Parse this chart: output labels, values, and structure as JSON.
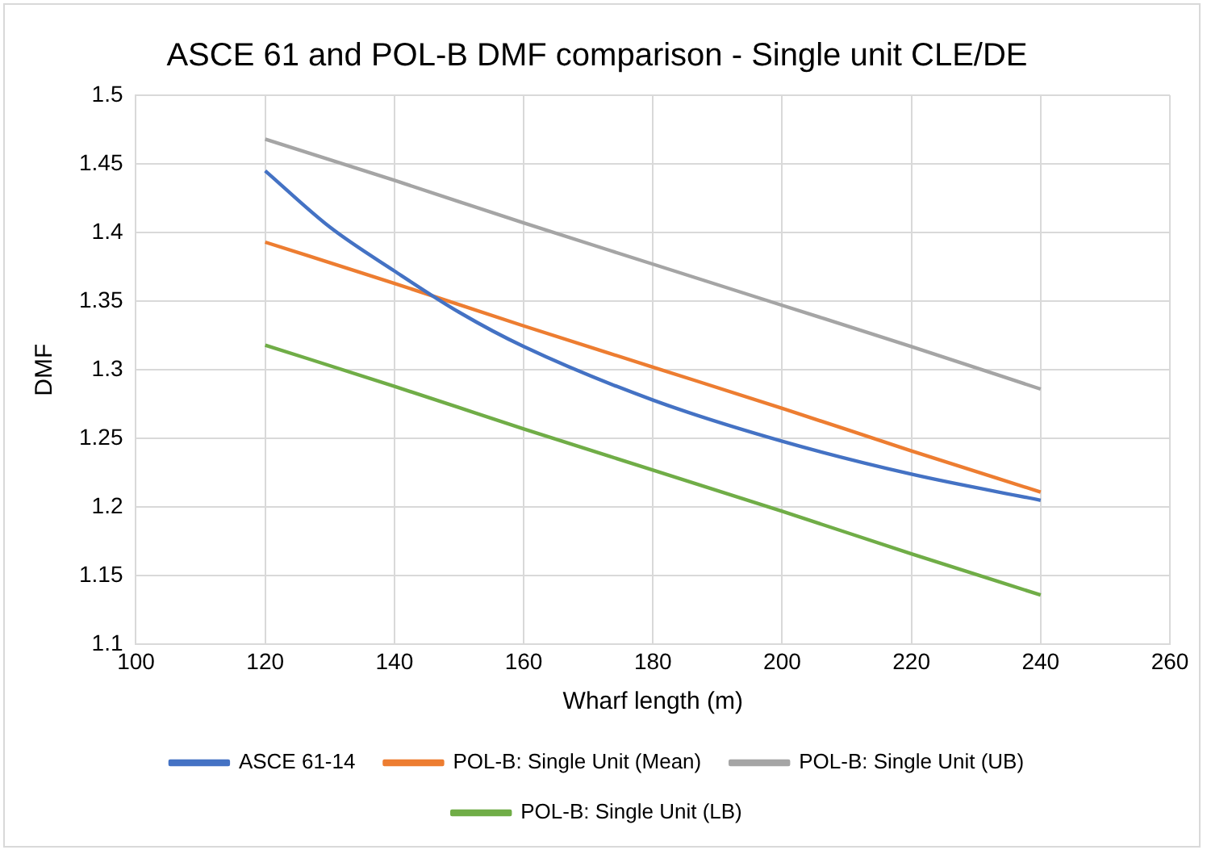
{
  "chart_data": {
    "type": "line",
    "title": "ASCE 61 and POL-B DMF comparison - Single unit CLE/DE",
    "xlabel": "Wharf length (m)",
    "ylabel": "DMF",
    "xlim": [
      100,
      260
    ],
    "xticks": [
      100,
      120,
      140,
      160,
      180,
      200,
      220,
      240,
      260
    ],
    "ylim": [
      1.1,
      1.5
    ],
    "yticks": [
      1.1,
      1.15,
      1.2,
      1.25,
      1.3,
      1.35,
      1.4,
      1.45,
      1.5
    ],
    "grid": true,
    "legend": "bottom",
    "marker": "none",
    "line_style": "solid",
    "series": [
      {
        "name": "ASCE 61-14",
        "color": "#4472c4",
        "x": [
          120,
          130,
          140,
          150,
          160,
          180,
          200,
          220,
          240
        ],
        "values": [
          1.445,
          1.404,
          1.372,
          1.342,
          1.317,
          1.278,
          1.248,
          1.224,
          1.205
        ]
      },
      {
        "name": "POL-B: Single Unit (Mean)",
        "color": "#ed7d31",
        "x": [
          120,
          140,
          160,
          180,
          200,
          220,
          240
        ],
        "values": [
          1.393,
          1.363,
          1.332,
          1.302,
          1.272,
          1.241,
          1.211
        ]
      },
      {
        "name": "POL-B: Single Unit (UB)",
        "color": "#a5a5a5",
        "x": [
          120,
          140,
          160,
          180,
          200,
          220,
          240
        ],
        "values": [
          1.468,
          1.438,
          1.407,
          1.377,
          1.347,
          1.317,
          1.286
        ]
      },
      {
        "name": "POL-B: Single Unit (LB)",
        "color": "#70ad47",
        "x": [
          120,
          140,
          160,
          180,
          200,
          220,
          240
        ],
        "values": [
          1.318,
          1.288,
          1.257,
          1.227,
          1.197,
          1.166,
          1.136
        ]
      }
    ]
  }
}
